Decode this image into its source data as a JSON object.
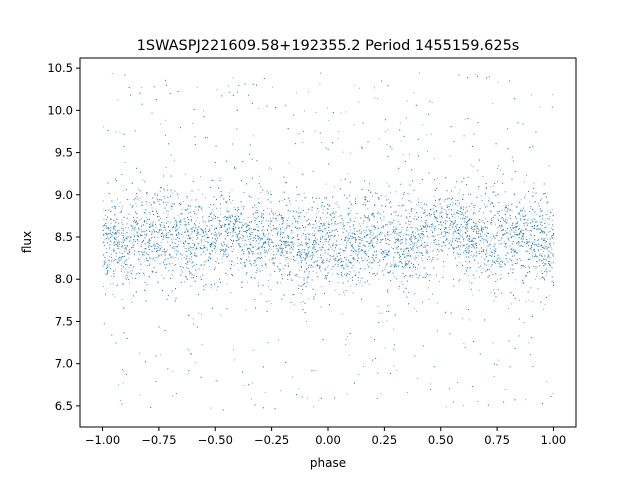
{
  "chart_data": {
    "type": "scatter",
    "title": "1SWASPJ221609.58+192355.2 Period 1455159.625s",
    "xlabel": "phase",
    "ylabel": "flux",
    "xlim": [
      -1.1,
      1.1
    ],
    "ylim": [
      6.25,
      10.62
    ],
    "x_ticks": [
      -1.0,
      -0.75,
      -0.5,
      -0.25,
      0.0,
      0.25,
      0.5,
      0.75,
      1.0
    ],
    "x_tick_labels": [
      "−1.00",
      "−0.75",
      "−0.50",
      "−0.25",
      "0.00",
      "0.25",
      "0.50",
      "0.75",
      "1.00"
    ],
    "y_ticks": [
      6.5,
      7.0,
      7.5,
      8.0,
      8.5,
      9.0,
      9.5,
      10.0,
      10.5
    ],
    "y_tick_labels": [
      "6.5",
      "7.0",
      "7.5",
      "8.0",
      "8.5",
      "9.0",
      "9.5",
      "10.0",
      "10.5"
    ],
    "grid": false,
    "legend": "none",
    "marker_color": "#1f77b4",
    "series": [
      {
        "phase_range": [
          -1.0,
          1.0
        ],
        "flux_core_range": [
          7.9,
          8.95
        ],
        "flux_full_range": [
          6.45,
          10.45
        ],
        "flux_median": 8.45,
        "x": [
          -1.0,
          -0.96,
          -0.9,
          -0.85,
          -0.8,
          -0.75,
          -0.7,
          -0.65,
          -0.6,
          -0.55,
          -0.5,
          -0.45,
          -0.4,
          -0.35,
          -0.3,
          -0.25,
          -0.2,
          -0.15,
          -0.1,
          -0.05,
          0.0,
          0.05,
          0.1,
          0.15,
          0.2,
          0.25,
          0.3,
          0.35,
          0.4,
          0.45,
          0.5,
          0.55,
          0.6,
          0.65,
          0.7,
          0.75,
          0.8,
          0.85,
          0.9,
          0.95,
          1.0
        ],
        "y": [
          8.4,
          8.5,
          8.3,
          8.6,
          8.5,
          8.6,
          8.55,
          8.5,
          8.45,
          8.5,
          8.5,
          8.6,
          8.55,
          8.5,
          8.45,
          8.5,
          8.45,
          8.4,
          8.35,
          8.4,
          8.45,
          8.35,
          8.4,
          8.45,
          8.5,
          8.5,
          8.45,
          8.4,
          8.5,
          8.55,
          8.6,
          8.6,
          8.55,
          8.5,
          8.5,
          8.45,
          8.55,
          8.5,
          8.5,
          8.45,
          8.4
        ]
      }
    ]
  }
}
